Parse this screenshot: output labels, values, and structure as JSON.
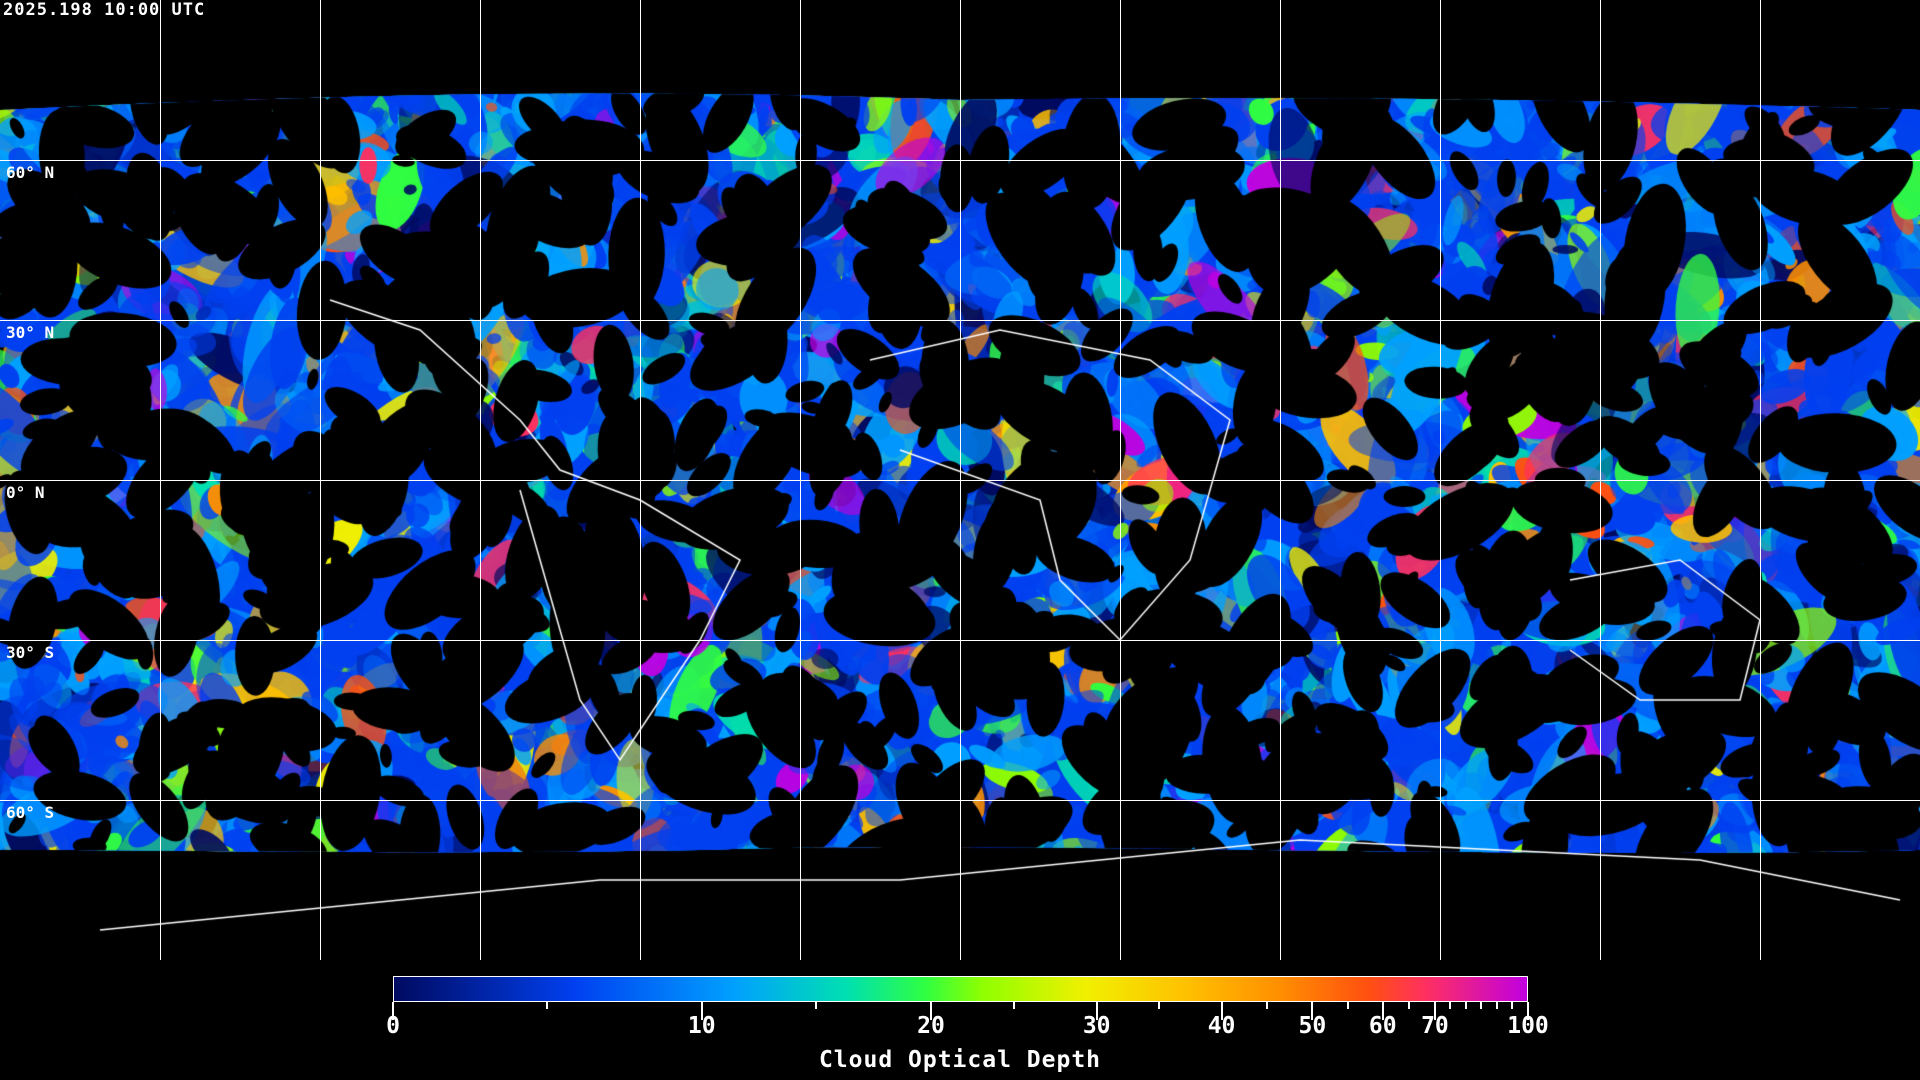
{
  "header": {
    "timestamp": "2025.198 10:00 UTC"
  },
  "map": {
    "latitude_labels": [
      "60° N",
      "30° N",
      "0° N",
      "30° S",
      "60° S"
    ],
    "graticule_spacing_deg": 30
  },
  "colorbar": {
    "title": "Cloud Optical Depth",
    "range": [
      0,
      100
    ],
    "tick_labels": [
      "0",
      "10",
      "20",
      "30",
      "40",
      "50",
      "60",
      "70",
      "100"
    ],
    "colormap": [
      "#000a60",
      "#0040f0",
      "#00a0ff",
      "#00e0b0",
      "#30ff40",
      "#90ff00",
      "#f0f000",
      "#ffc000",
      "#ff9000",
      "#ff5010",
      "#ff3060",
      "#c000e0"
    ]
  }
}
